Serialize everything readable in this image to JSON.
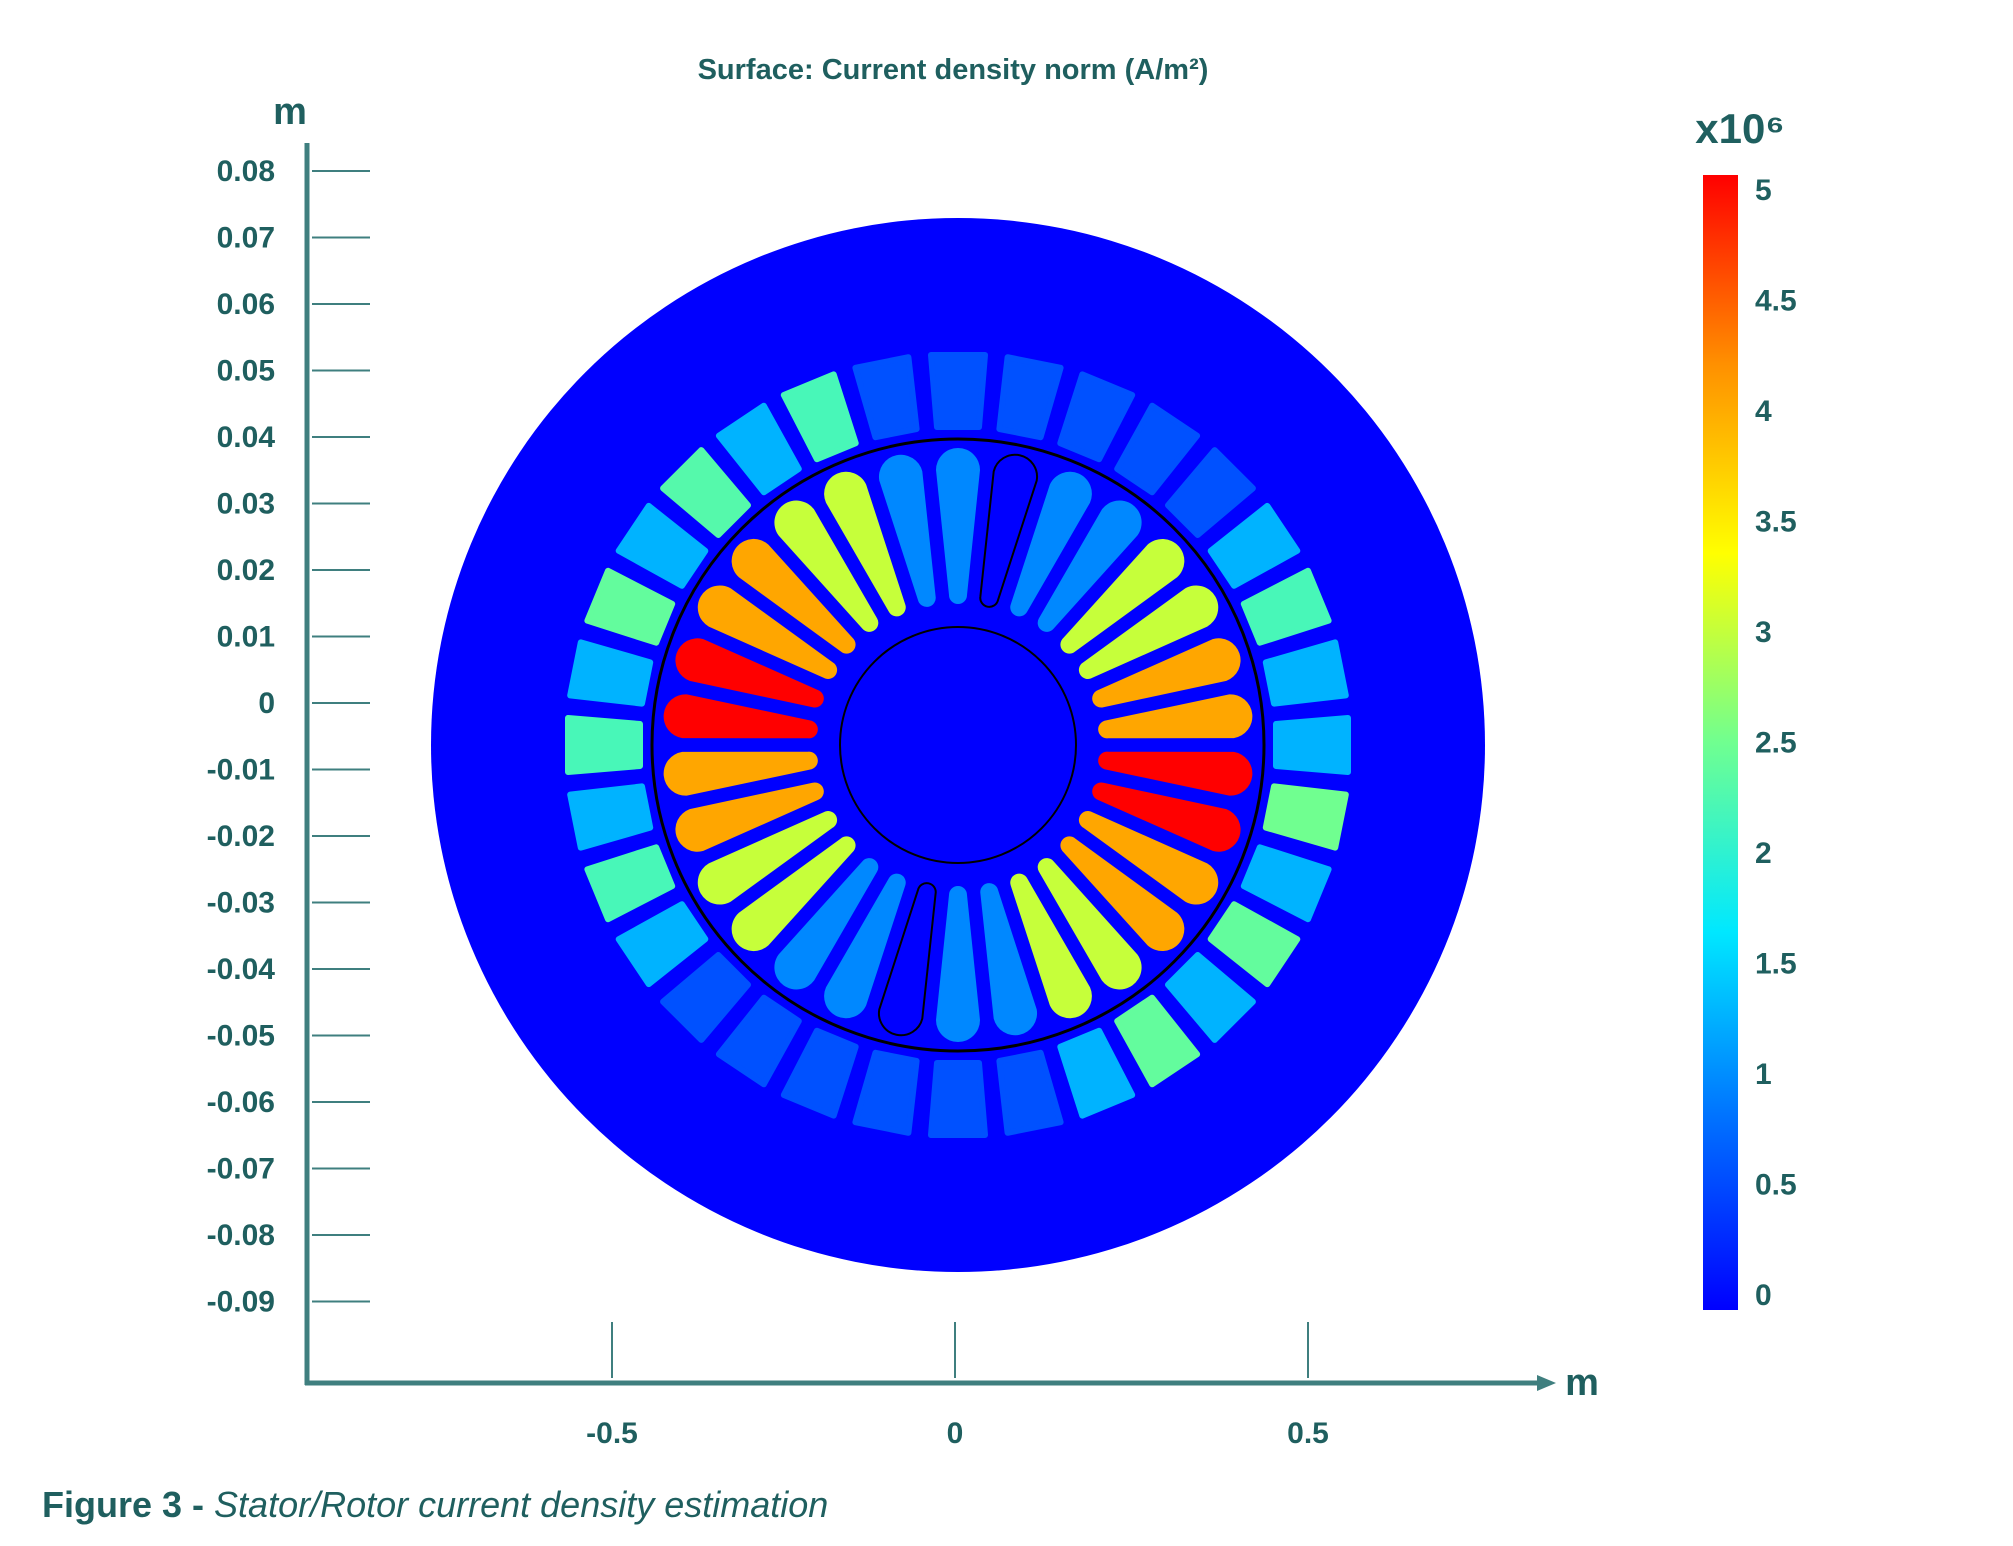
{
  "chart_data": {
    "type": "heatmap",
    "title": "Surface: Current density norm (A/m²)",
    "x_unit": "m",
    "y_unit": "m",
    "x_ticks": [
      "-0.5",
      "0",
      "0.5"
    ],
    "y_ticks": [
      "0.08",
      "0.07",
      "0.06",
      "0.05",
      "0.04",
      "0.03",
      "0.02",
      "0.01",
      "0",
      "-0.01",
      "-0.02",
      "-0.03",
      "-0.04",
      "-0.05",
      "-0.06",
      "-0.07",
      "-0.08",
      "-0.09"
    ],
    "colorbar": {
      "multiplier": "x10⁶",
      "ticks": [
        "5",
        "4.5",
        "4",
        "3.5",
        "3",
        "2.5",
        "2",
        "1.5",
        "1",
        "0.5",
        "0"
      ],
      "range": [
        0,
        5
      ],
      "colormap": "rainbow",
      "stops": [
        "#0000ff",
        "#0070ff",
        "#00e8ff",
        "#70ff90",
        "#ffff00",
        "#ff9000",
        "#ff0000"
      ]
    },
    "background_value": 0,
    "rotor_slots": [
      5.0,
      5.0,
      4.0,
      4.0,
      3.0,
      3.0,
      1.0,
      1.0,
      0.0,
      1.0,
      1.0,
      3.0,
      3.0,
      4.0,
      4.0,
      5.0,
      5.0,
      4.0,
      4.0,
      3.0,
      3.0,
      1.0,
      1.0,
      0.0,
      1.0,
      1.0,
      3.0,
      3.0,
      4.0,
      4.0
    ],
    "stator_slots": [
      1.3,
      2.5,
      1.3,
      2.4,
      1.3,
      2.4,
      1.3,
      0.6,
      0.6,
      0.6,
      0.6,
      0.6,
      0.6,
      1.3,
      2.2,
      1.3,
      2.2,
      1.3,
      2.4,
      1.3,
      2.3,
      1.3,
      2.2,
      0.6,
      0.6,
      0.6,
      0.6,
      0.6,
      0.6,
      1.3,
      2.2,
      1.3
    ]
  },
  "caption": {
    "label": "Figure 3 - ",
    "text": "Stator/Rotor current density estimation"
  }
}
